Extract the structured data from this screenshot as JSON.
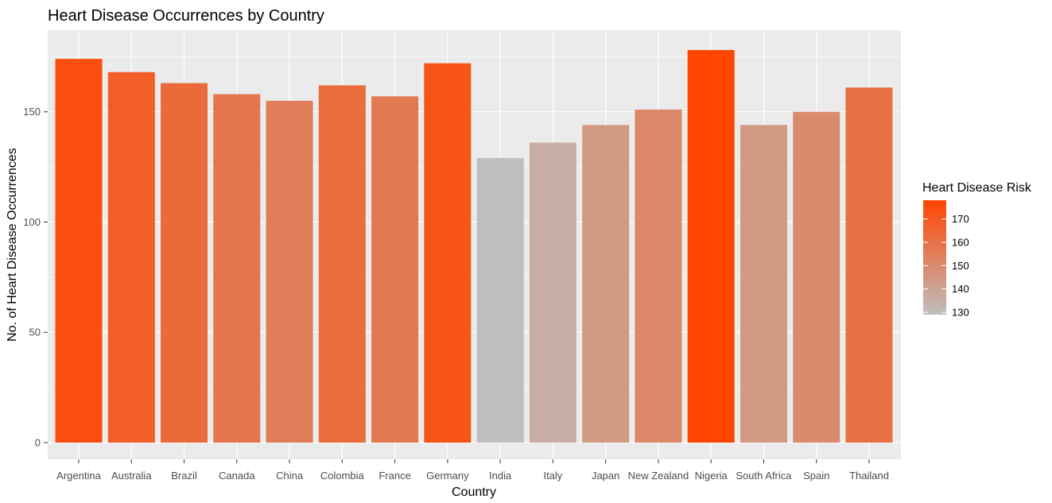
{
  "chart_data": {
    "type": "bar",
    "title": "Heart Disease Occurrences by Country",
    "xlabel": "Country",
    "ylabel": "No. of Heart Disease Occurrences",
    "categories": [
      "Argentina",
      "Australia",
      "Brazil",
      "Canada",
      "China",
      "Colombia",
      "France",
      "Germany",
      "India",
      "Italy",
      "Japan",
      "New Zealand",
      "Nigeria",
      "South Africa",
      "Spain",
      "Thailand"
    ],
    "values": [
      174,
      168,
      163,
      158,
      155,
      162,
      157,
      172,
      129,
      136,
      144,
      151,
      178,
      144,
      150,
      161
    ],
    "ylim": [
      0,
      187
    ],
    "yticks": [
      0,
      50,
      100,
      150
    ],
    "grid": true,
    "panel_background": "#ebebeb",
    "legend": {
      "title": "Heart Disease Risk",
      "position": "right",
      "ticks": [
        130,
        140,
        150,
        160,
        170
      ],
      "range": [
        129,
        178
      ],
      "low_color": "#bebebe",
      "high_color": "#ff4500"
    }
  }
}
